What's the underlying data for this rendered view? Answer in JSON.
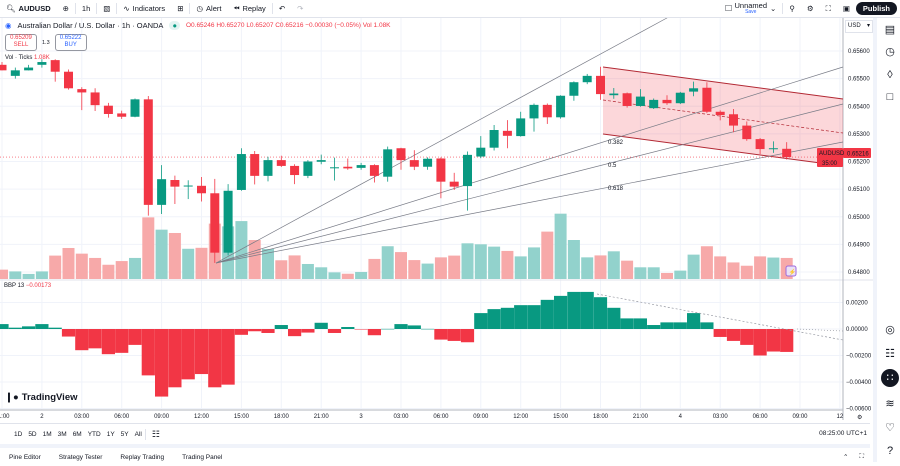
{
  "toolbar": {
    "symbol": "AUDUSD",
    "interval": "1h",
    "indicators_label": "Indicators",
    "alert_label": "Alert",
    "replay_label": "Replay",
    "layout_name": "Unnamed",
    "layout_status": "Save",
    "publish_label": "Publish"
  },
  "legend": {
    "title": "Australian Dollar / U.S. Dollar · 1h · OANDA",
    "ohlc": "O0.65246 H0.65270 L0.65207 C0.65216 −0.00030 (−0.05%) Vol 1.08K",
    "sell_price": "0.65209",
    "sell_label": "SELL",
    "spread": "1.3",
    "buy_price": "0.65222",
    "buy_label": "BUY",
    "volume_label": "Vol · Ticks",
    "volume_value": "1.08K",
    "bbp_label": "BBP 13",
    "bbp_value": "−0.00173"
  },
  "price_axis": {
    "currency": "USD",
    "labels": [
      "0.65600",
      "0.65500",
      "0.65400",
      "0.65300",
      "0.65200",
      "0.65100",
      "0.65000",
      "0.64900",
      "0.64800"
    ],
    "bbp_labels": [
      "0.00200",
      "0.00000",
      "−0.00200",
      "−0.00400",
      "−0.00600"
    ],
    "last_price_symbol": "AUDUSD",
    "last_price": "0.65216",
    "countdown": "35:00"
  },
  "fib_labels": [
    "0.382",
    "0.5",
    "0.618"
  ],
  "colors": {
    "up": "#089981",
    "down": "#f23645",
    "vol_up": "#92d2cc",
    "vol_down": "#f7a9a9",
    "channel": "#f23645",
    "fan": "#787b86"
  },
  "chart_data": {
    "type": "candlestick",
    "interval": "1h",
    "x_ticks": [
      "21:00",
      "2",
      "03:00",
      "06:00",
      "09:00",
      "12:00",
      "15:00",
      "18:00",
      "21:00",
      "3",
      "03:00",
      "06:00",
      "09:00",
      "12:00",
      "15:00",
      "18:00",
      "21:00",
      "4",
      "03:00",
      "06:00",
      "09:00",
      "12"
    ],
    "ylim": [
      0.6478,
      0.6562
    ],
    "ohlc": [
      [
        0.6555,
        0.6556,
        0.6553,
        0.6553
      ],
      [
        0.6551,
        0.6554,
        0.655,
        0.6553
      ],
      [
        0.6553,
        0.6555,
        0.6553,
        0.6554
      ],
      [
        0.6555,
        0.6557,
        0.6554,
        0.6556
      ],
      [
        0.65567,
        0.6557,
        0.65489,
        0.65525
      ],
      [
        0.65525,
        0.65533,
        0.6546,
        0.65465
      ],
      [
        0.65462,
        0.65469,
        0.65386,
        0.6545
      ],
      [
        0.6545,
        0.65465,
        0.65383,
        0.65404
      ],
      [
        0.65402,
        0.65412,
        0.65359,
        0.65372
      ],
      [
        0.65374,
        0.65384,
        0.65354,
        0.65362
      ],
      [
        0.65362,
        0.65428,
        0.6536,
        0.65425
      ],
      [
        0.65425,
        0.65437,
        0.65004,
        0.65043
      ],
      [
        0.65043,
        0.65187,
        0.6501,
        0.65136
      ],
      [
        0.65133,
        0.65149,
        0.65046,
        0.65109
      ],
      [
        0.65112,
        0.65132,
        0.65064,
        0.65113
      ],
      [
        0.65112,
        0.65144,
        0.65055,
        0.65085
      ],
      [
        0.65085,
        0.65137,
        0.64833,
        0.6487
      ],
      [
        0.6487,
        0.65118,
        0.6486,
        0.65094
      ],
      [
        0.65097,
        0.65248,
        0.65094,
        0.65227
      ],
      [
        0.65227,
        0.65238,
        0.65117,
        0.65148
      ],
      [
        0.65148,
        0.65217,
        0.65128,
        0.65205
      ],
      [
        0.65205,
        0.65221,
        0.6518,
        0.65184
      ],
      [
        0.65184,
        0.6519,
        0.65118,
        0.65151
      ],
      [
        0.65148,
        0.65205,
        0.6514,
        0.652
      ],
      [
        0.65199,
        0.65225,
        0.6519,
        0.65205
      ],
      [
        0.65177,
        0.65214,
        0.65131,
        0.65179
      ],
      [
        0.65181,
        0.65211,
        0.6517,
        0.65175
      ],
      [
        0.65177,
        0.65195,
        0.6517,
        0.65187
      ],
      [
        0.65187,
        0.6519,
        0.65124,
        0.65148
      ],
      [
        0.65145,
        0.65254,
        0.65127,
        0.65244
      ],
      [
        0.65248,
        0.6525,
        0.6517,
        0.65205
      ],
      [
        0.65205,
        0.65241,
        0.65169,
        0.65181
      ],
      [
        0.65181,
        0.65215,
        0.6517,
        0.6521
      ],
      [
        0.65211,
        0.65215,
        0.65067,
        0.65127
      ],
      [
        0.65127,
        0.65159,
        0.65097,
        0.65109
      ],
      [
        0.65111,
        0.65236,
        0.65022,
        0.65224
      ],
      [
        0.65218,
        0.65292,
        0.65212,
        0.6525
      ],
      [
        0.6525,
        0.65332,
        0.6524,
        0.65314
      ],
      [
        0.65311,
        0.6535,
        0.65248,
        0.65293
      ],
      [
        0.65292,
        0.6538,
        0.6529,
        0.65356
      ],
      [
        0.65356,
        0.6541,
        0.65308,
        0.65405
      ],
      [
        0.65405,
        0.6541,
        0.65336,
        0.6536
      ],
      [
        0.6536,
        0.6544,
        0.65355,
        0.65438
      ],
      [
        0.65438,
        0.6549,
        0.6542,
        0.65487
      ],
      [
        0.65487,
        0.65517,
        0.6548,
        0.6551
      ],
      [
        0.6551,
        0.65543,
        0.65423,
        0.65444
      ],
      [
        0.6544,
        0.65466,
        0.65427,
        0.65446
      ],
      [
        0.65447,
        0.6545,
        0.65395,
        0.65401
      ],
      [
        0.65401,
        0.65462,
        0.65398,
        0.65435
      ],
      [
        0.65393,
        0.65428,
        0.6539,
        0.65423
      ],
      [
        0.65423,
        0.6544,
        0.65405,
        0.65411
      ],
      [
        0.65411,
        0.65452,
        0.65408,
        0.65449
      ],
      [
        0.65453,
        0.65489,
        0.65436,
        0.65465
      ],
      [
        0.65467,
        0.65487,
        0.65375,
        0.6538
      ],
      [
        0.6538,
        0.65385,
        0.65349,
        0.65368
      ],
      [
        0.65371,
        0.6539,
        0.65306,
        0.6533
      ],
      [
        0.6533,
        0.65345,
        0.65275,
        0.65281
      ],
      [
        0.65281,
        0.65285,
        0.65227,
        0.65245
      ],
      [
        0.65245,
        0.65273,
        0.65231,
        0.65248
      ],
      [
        0.65246,
        0.6527,
        0.65207,
        0.65216
      ]
    ],
    "volume_k": [
      0.48,
      0.39,
      0.26,
      0.39,
      1.2,
      1.59,
      1.3,
      1.08,
      0.73,
      0.92,
      1.08,
      3.16,
      2.53,
      2.36,
      1.55,
      1.6,
      2.84,
      2.7,
      2.97,
      2.0,
      1.54,
      0.96,
      1.21,
      0.77,
      0.6,
      0.34,
      0.27,
      0.36,
      1.03,
      1.68,
      1.38,
      0.97,
      0.79,
      1.11,
      1.2,
      1.83,
      1.78,
      1.66,
      1.44,
      1.16,
      1.62,
      2.43,
      3.35,
      2.0,
      1.11,
      1.21,
      1.42,
      0.94,
      0.6,
      0.6,
      0.31,
      0.43,
      1.25,
      1.68,
      1.16,
      0.85,
      0.68,
      1.16,
      1.1,
      1.08
    ],
    "bbp": [
      0.00037,
      0.0001,
      0.0002,
      0.00037,
      0.0001,
      -0.00057,
      -0.0016,
      -0.00146,
      -0.0019,
      -0.0018,
      -0.0012,
      -0.0035,
      -0.0051,
      -0.0044,
      -0.0038,
      -0.0034,
      -0.0044,
      -0.0042,
      -0.00044,
      -0.00017,
      -0.0003,
      0.0003,
      -0.00054,
      -0.00027,
      0.00047,
      -0.0003,
      0.00015,
      -2e-05,
      -0.00047,
      1e-05,
      0.00037,
      0.00027,
      1e-05,
      -0.0008,
      -0.0009,
      -0.001,
      0.0012,
      0.0015,
      0.0016,
      0.0018,
      0.0018,
      0.0022,
      0.0025,
      0.0028,
      0.0028,
      0.0024,
      0.0016,
      0.0008,
      0.0008,
      0.0003,
      0.0005,
      0.0005,
      0.0012,
      0.0005,
      -0.0006,
      -0.0009,
      -0.0012,
      -0.002,
      -0.0017,
      -0.00173
    ],
    "bbp_ylim": [
      -0.0065,
      0.003
    ],
    "grid": true
  },
  "range_bar": {
    "ranges": [
      "1D",
      "5D",
      "1M",
      "3M",
      "6M",
      "YTD",
      "1Y",
      "5Y",
      "All"
    ],
    "clock": "08:25:00 UTC+1"
  },
  "bottom_tabs": [
    "Pine Editor",
    "Strategy Tester",
    "Replay Trading",
    "Trading Panel"
  ],
  "brand": "TradingView"
}
